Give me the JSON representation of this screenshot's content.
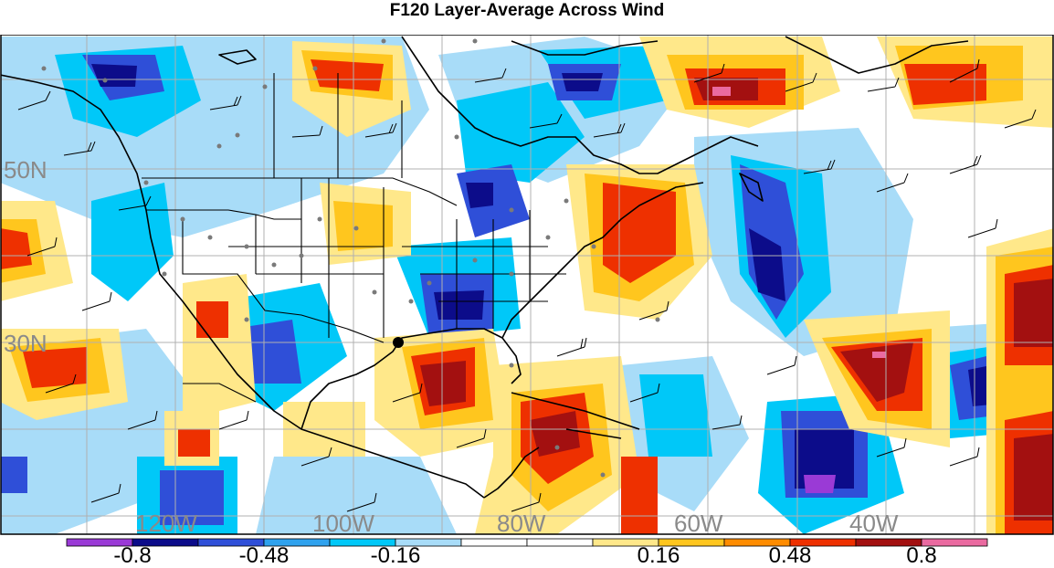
{
  "title": "F120 Layer-Average Across Wind",
  "lat_labels": [
    "50N",
    "30N"
  ],
  "lon_labels": [
    "120W",
    "100W",
    "80W",
    "60W",
    "40W"
  ],
  "colorbar": {
    "colors": [
      "#9a3ad6",
      "#0c0c8a",
      "#2f4fd8",
      "#2fa2ee",
      "#00c8f8",
      "#a8dcf8",
      "#ffffff",
      "#ffffff",
      "#ffe88a",
      "#ffc61e",
      "#ff8c00",
      "#ee3000",
      "#a31010",
      "#ea6aa0"
    ],
    "tick_labels": [
      "-0.8",
      "-0.48",
      "-0.16",
      "0.16",
      "0.48",
      "0.8"
    ]
  }
}
